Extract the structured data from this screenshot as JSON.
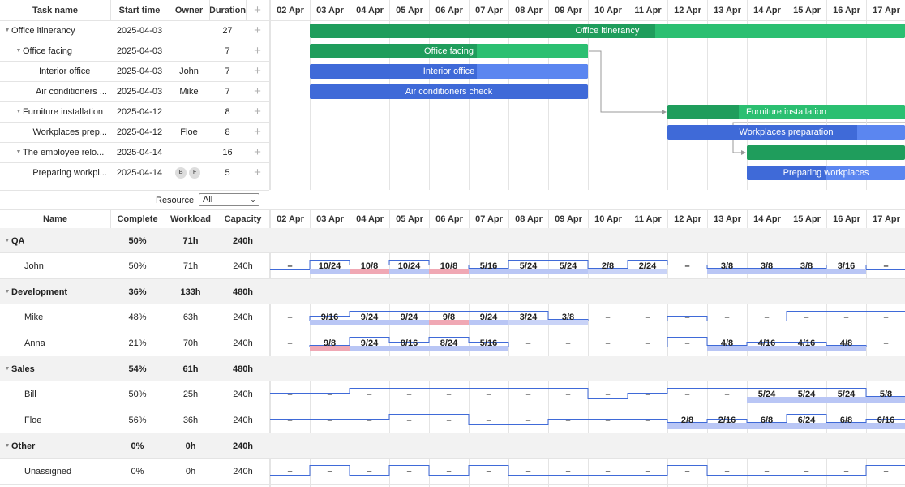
{
  "gantt": {
    "columns": {
      "task_name": "Task name",
      "start_time": "Start time",
      "owner": "Owner",
      "duration": "Duration",
      "add": "+"
    },
    "dates": [
      "02 Apr",
      "03 Apr",
      "04 Apr",
      "05 Apr",
      "06 Apr",
      "07 Apr",
      "08 Apr",
      "09 Apr",
      "10 Apr",
      "11 Apr",
      "12 Apr",
      "13 Apr",
      "14 Apr",
      "15 Apr",
      "16 Apr",
      "17 Apr"
    ],
    "tasks": [
      {
        "name": "Office itinerancy",
        "start": "2025-04-03",
        "owner": "",
        "duration": "27",
        "level": 0,
        "expand": true,
        "bar": {
          "label": "Office itinerancy",
          "color": "#1f9d5c",
          "progress_color": "#2bbf71",
          "start_day": 1,
          "end_day": 16,
          "progress": 0.58
        }
      },
      {
        "name": "Office facing",
        "start": "2025-04-03",
        "owner": "",
        "duration": "7",
        "level": 1,
        "expand": true,
        "bar": {
          "label": "Office facing",
          "color": "#1f9d5c",
          "progress_color": "#2bbf71",
          "start_day": 1,
          "end_day": 8,
          "progress": 0.6
        }
      },
      {
        "name": "Interior office",
        "start": "2025-04-03",
        "owner": "John",
        "duration": "7",
        "level": 2,
        "bar": {
          "label": "Interior office",
          "color": "#3f6ad8",
          "progress_color": "#5b86f0",
          "start_day": 1,
          "end_day": 8,
          "progress": 0.6
        }
      },
      {
        "name": "Air conditioners ...",
        "start": "2025-04-03",
        "owner": "Mike",
        "duration": "7",
        "level": 2,
        "bar": {
          "label": "Air conditioners check",
          "color": "#3f6ad8",
          "progress_color": "#3f6ad8",
          "start_day": 1,
          "end_day": 8,
          "progress": 1
        }
      },
      {
        "name": "Furniture installation",
        "start": "2025-04-12",
        "owner": "",
        "duration": "8",
        "level": 1,
        "expand": true,
        "bar": {
          "label": "Furniture installation",
          "color": "#1f9d5c",
          "progress_color": "#2bbf71",
          "start_day": 10,
          "end_day": 16,
          "progress": 0.3
        }
      },
      {
        "name": "Workplaces prep...",
        "start": "2025-04-12",
        "owner": "Floe",
        "duration": "8",
        "level": 2,
        "bar": {
          "label": "Workplaces preparation",
          "color": "#3f6ad8",
          "progress_color": "#5b86f0",
          "start_day": 10,
          "end_day": 16,
          "progress": 0.8
        }
      },
      {
        "name": "The employee relo...",
        "start": "2025-04-14",
        "owner": "",
        "duration": "16",
        "level": 1,
        "expand": true,
        "bar": {
          "label": "",
          "color": "#1f9d5c",
          "progress_color": "#1f9d5c",
          "start_day": 12,
          "end_day": 16,
          "progress": 1
        }
      },
      {
        "name": "Preparing workpl...",
        "start": "2025-04-14",
        "owner_avatars": [
          "B",
          "F"
        ],
        "owner": "",
        "duration": "5",
        "level": 2,
        "bar": {
          "label": "Preparing workplaces",
          "color": "#3f6ad8",
          "progress_color": "#5b86f0",
          "start_day": 12,
          "end_day": 16,
          "progress": 0.5
        }
      }
    ]
  },
  "resource_filter": {
    "label": "Resource",
    "value": "All"
  },
  "resources": {
    "columns": {
      "name": "Name",
      "complete": "Complete",
      "workload": "Workload",
      "capacity": "Capacity"
    },
    "rows": [
      {
        "name": "QA",
        "complete": "50%",
        "workload": "71h",
        "capacity": "240h",
        "group": true
      },
      {
        "name": "John",
        "complete": "50%",
        "workload": "71h",
        "capacity": "240h",
        "cells": [
          "–",
          "10/24",
          "10/8",
          "10/24",
          "10/8",
          "5/16",
          "5/24",
          "5/24",
          "2/8",
          "2/24",
          "–",
          "3/8",
          "3/8",
          "3/8",
          "3/16",
          "–"
        ],
        "levels": [
          0.2,
          0.8,
          0.5,
          0.8,
          0.5,
          0.3,
          0.8,
          0.8,
          0.3,
          0.8,
          0.5,
          0.3,
          0.3,
          0.3,
          0.5,
          0.2
        ],
        "under": [
          "",
          "#b9c6f5",
          "#f0a8b4",
          "#b9c6f5",
          "#f0a8b4",
          "#b9c6f5",
          "#b9c6f5",
          "#b9c6f5",
          "#c9d3f7",
          "#c9d3f7",
          "",
          "#b9c6f5",
          "#b9c6f5",
          "#b9c6f5",
          "#b9c6f5",
          ""
        ]
      },
      {
        "name": "Development",
        "complete": "36%",
        "workload": "133h",
        "capacity": "480h",
        "group": true
      },
      {
        "name": "Mike",
        "complete": "48%",
        "workload": "63h",
        "capacity": "240h",
        "cells": [
          "–",
          "9/16",
          "9/24",
          "9/24",
          "9/8",
          "9/24",
          "3/24",
          "3/8",
          "–",
          "–",
          "–",
          "–",
          "–",
          "–",
          "–",
          "–"
        ],
        "levels": [
          0.2,
          0.5,
          0.8,
          0.8,
          0.8,
          0.8,
          0.8,
          0.3,
          0.2,
          0.2,
          0.5,
          0.2,
          0.2,
          0.8,
          0.8,
          0.8
        ],
        "under": [
          "",
          "#b9c6f5",
          "#b9c6f5",
          "#b9c6f5",
          "#f0a8b4",
          "#b9c6f5",
          "#c9d3f7",
          "#c9d3f7",
          "",
          "",
          "",
          "",
          "",
          "",
          "",
          ""
        ]
      },
      {
        "name": "Anna",
        "complete": "21%",
        "workload": "70h",
        "capacity": "240h",
        "cells": [
          "–",
          "9/8",
          "9/24",
          "8/16",
          "8/24",
          "5/16",
          "–",
          "–",
          "–",
          "–",
          "–",
          "4/8",
          "4/16",
          "4/16",
          "4/8",
          "–"
        ],
        "levels": [
          0.2,
          0.3,
          0.8,
          0.5,
          0.8,
          0.5,
          0.2,
          0.2,
          0.2,
          0.2,
          0.8,
          0.3,
          0.5,
          0.5,
          0.3,
          0.2
        ],
        "under": [
          "",
          "#f0a8b4",
          "#b9c6f5",
          "#b9c6f5",
          "#b9c6f5",
          "#b9c6f5",
          "",
          "",
          "",
          "",
          "",
          "#b9c6f5",
          "#b9c6f5",
          "#b9c6f5",
          "#b9c6f5",
          ""
        ]
      },
      {
        "name": "Sales",
        "complete": "54%",
        "workload": "61h",
        "capacity": "480h",
        "group": true
      },
      {
        "name": "Bill",
        "complete": "50%",
        "workload": "25h",
        "capacity": "240h",
        "cells": [
          "–",
          "–",
          "–",
          "–",
          "–",
          "–",
          "–",
          "–",
          "–",
          "–",
          "–",
          "–",
          "5/24",
          "5/24",
          "5/24",
          "5/8"
        ],
        "levels": [
          0.5,
          0.5,
          0.8,
          0.8,
          0.8,
          0.8,
          0.8,
          0.8,
          0.2,
          0.5,
          0.8,
          0.8,
          0.8,
          0.8,
          0.8,
          0.3
        ],
        "under": [
          "",
          "",
          "",
          "",
          "",
          "",
          "",
          "",
          "",
          "",
          "",
          "",
          "#b9c6f5",
          "#b9c6f5",
          "#b9c6f5",
          "#b9c6f5"
        ]
      },
      {
        "name": "Floe",
        "complete": "56%",
        "workload": "36h",
        "capacity": "240h",
        "cells": [
          "–",
          "–",
          "–",
          "–",
          "–",
          "–",
          "–",
          "–",
          "–",
          "–",
          "2/8",
          "2/16",
          "6/8",
          "6/24",
          "6/8",
          "6/16"
        ],
        "levels": [
          0.5,
          0.5,
          0.5,
          0.8,
          0.8,
          0.2,
          0.2,
          0.5,
          0.5,
          0.5,
          0.3,
          0.5,
          0.3,
          0.8,
          0.3,
          0.5
        ],
        "under": [
          "",
          "",
          "",
          "",
          "",
          "",
          "",
          "",
          "",
          "",
          "#b9c6f5",
          "#b9c6f5",
          "#b9c6f5",
          "#b9c6f5",
          "#b9c6f5",
          "#b9c6f5"
        ]
      },
      {
        "name": "Other",
        "complete": "0%",
        "workload": "0h",
        "capacity": "240h",
        "group": true
      },
      {
        "name": "Unassigned",
        "complete": "0%",
        "workload": "0h",
        "capacity": "240h",
        "cells": [
          "–",
          "–",
          "–",
          "–",
          "–",
          "–",
          "–",
          "–",
          "–",
          "–",
          "–",
          "–",
          "–",
          "–",
          "–",
          "–"
        ],
        "levels": [
          0.2,
          0.8,
          0.2,
          0.8,
          0.2,
          0.8,
          0.2,
          0.2,
          0.2,
          0.2,
          0.8,
          0.2,
          0.2,
          0.2,
          0.2,
          0.8
        ],
        "under": [
          "",
          "",
          "",
          "",
          "",
          "",
          "",
          "",
          "",
          "",
          "",
          "",
          "",
          "",
          "",
          ""
        ]
      }
    ]
  },
  "colors": {
    "grid": "#e4e4e4",
    "group_bg": "#f2f2f2",
    "capacity_line": "#3f6ad8"
  }
}
